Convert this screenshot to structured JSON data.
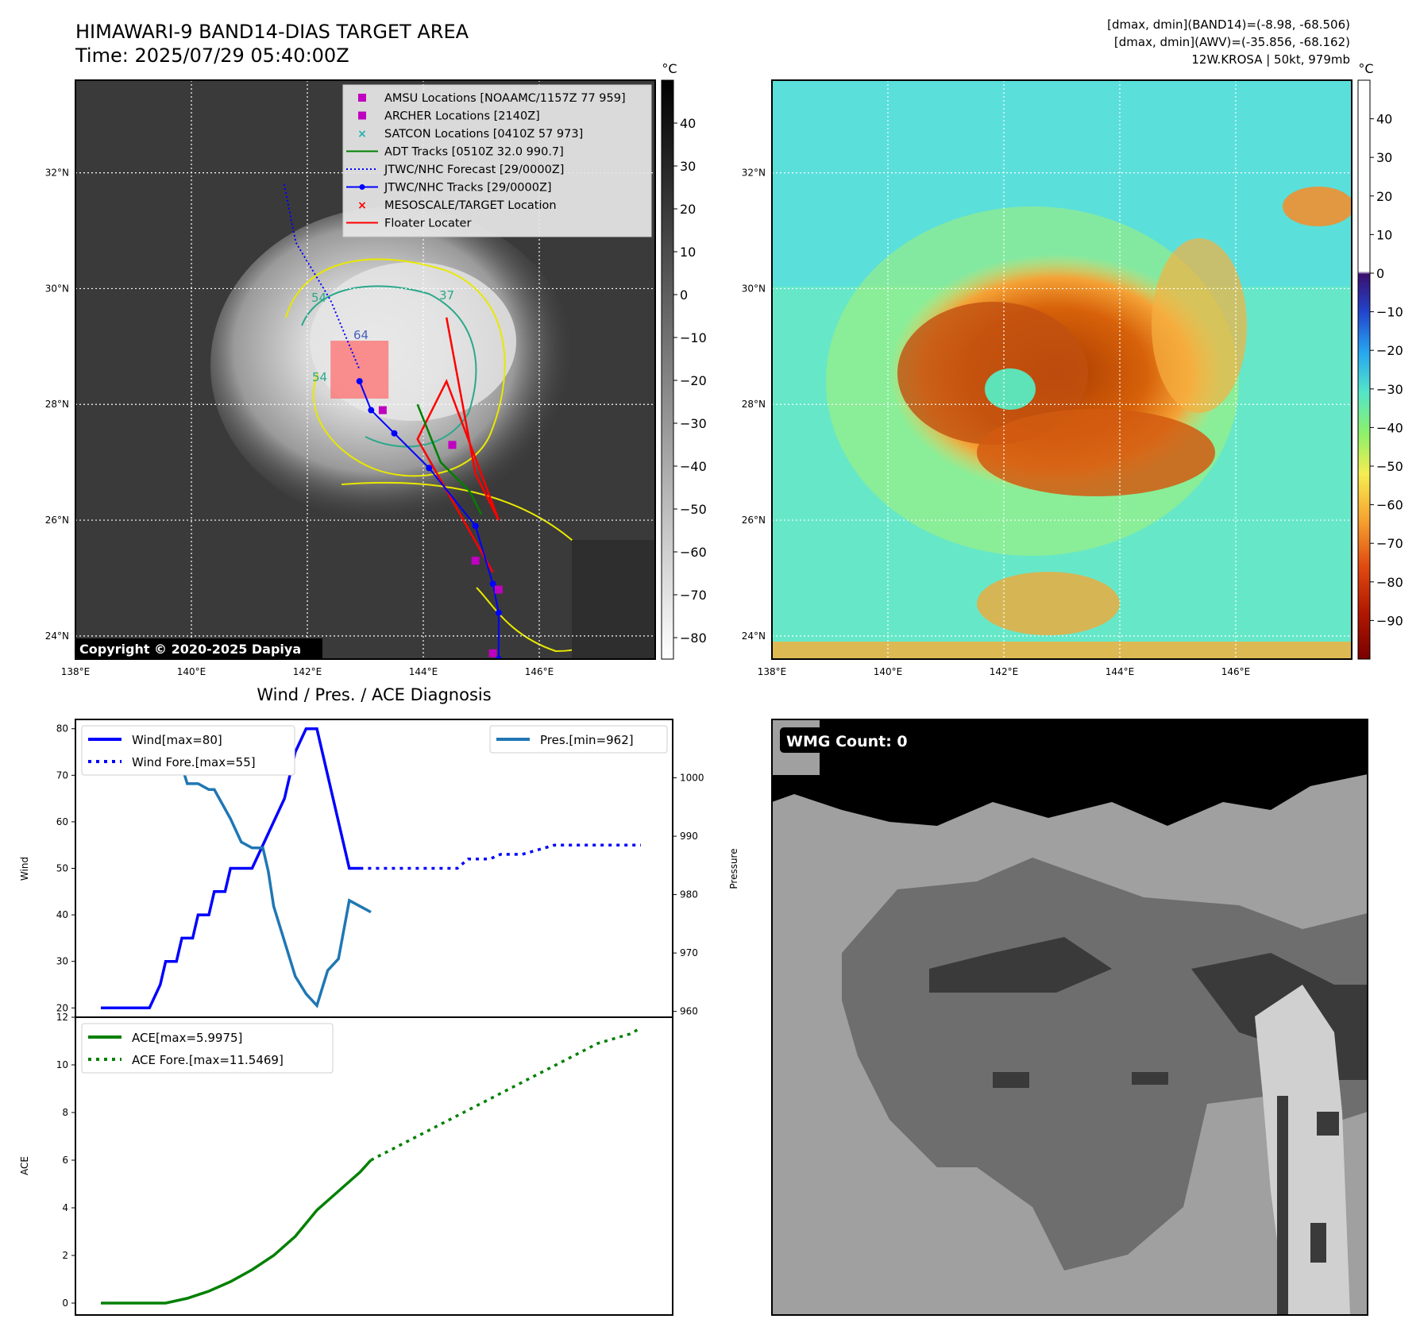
{
  "header": {
    "title_line1": "HIMAWARI-9 BAND14-DIAS TARGET AREA",
    "title_line2": "Time: 2025/07/29 05:40:00Z",
    "info_line1": "[dmax, dmin](BAND14)=(-8.98, -68.506)",
    "info_line2": "[dmax, dmin](AWV)=(-35.856, -68.162)",
    "info_line3": "12W.KROSA | 50kt, 979mb"
  },
  "map": {
    "lat_ticks": [
      "32°N",
      "30°N",
      "28°N",
      "26°N",
      "24°N"
    ],
    "lon_ticks": [
      "138°E",
      "140°E",
      "142°E",
      "144°E",
      "146°E"
    ],
    "lon_range": [
      138,
      148
    ],
    "lat_range": [
      23.6,
      33.6
    ],
    "copyright": "Copyright © 2020-2025 Dapiya",
    "contour_labels": [
      "54",
      "37",
      "64",
      "54"
    ],
    "legend": [
      {
        "label": "AMSU Locations [NOAAMC/1157Z 77 959]",
        "marker": "square",
        "color": "#c000c0"
      },
      {
        "label": "ARCHER Locations [2140Z]",
        "marker": "square",
        "color": "#c000c0"
      },
      {
        "label": "SATCON Locations [0410Z 57 973]",
        "marker": "x",
        "color": "#20b0b0"
      },
      {
        "label": "ADT Tracks [0510Z 32.0 990.7]",
        "marker": "line",
        "color": "#008000"
      },
      {
        "label": "JTWC/NHC Forecast [29/0000Z]",
        "marker": "dotted",
        "color": "#0000ff"
      },
      {
        "label": "JTWC/NHC Tracks [29/0000Z]",
        "marker": "line-dot",
        "color": "#0000ff"
      },
      {
        "label": "MESOSCALE/TARGET Location",
        "marker": "x",
        "color": "#ff0000"
      },
      {
        "label": "Floater Locater",
        "marker": "line",
        "color": "#ff0000"
      }
    ],
    "track_forecast": [
      [
        141.6,
        31.8
      ],
      [
        141.8,
        30.8
      ],
      [
        142.4,
        29.8
      ],
      [
        142.9,
        28.6
      ]
    ],
    "track_jtwc": [
      [
        145.3,
        23.6
      ],
      [
        145.3,
        24.4
      ],
      [
        145.2,
        24.9
      ],
      [
        144.9,
        25.9
      ],
      [
        144.1,
        26.9
      ],
      [
        143.5,
        27.5
      ],
      [
        143.1,
        27.9
      ],
      [
        142.9,
        28.4
      ]
    ],
    "amsu_points": [
      [
        143.3,
        27.9
      ],
      [
        144.9,
        25.3
      ],
      [
        145.3,
        24.8
      ],
      [
        145.2,
        23.7
      ],
      [
        144.5,
        27.3
      ]
    ],
    "adt_track": [
      [
        143.9,
        28.0
      ],
      [
        144.3,
        27.0
      ],
      [
        144.8,
        26.5
      ],
      [
        145.0,
        26.1
      ]
    ],
    "floater": [
      [
        144.4,
        29.5
      ],
      [
        144.9,
        26.8
      ],
      [
        145.3,
        26.0
      ],
      [
        144.4,
        28.4
      ],
      [
        143.9,
        27.4
      ],
      [
        145.2,
        25.1
      ]
    ],
    "mesoscale_box": [
      142.4,
      28.1,
      143.4,
      29.1
    ]
  },
  "colorbar_left": {
    "unit": "°C",
    "ticks": [
      "40",
      "30",
      "20",
      "10",
      "0",
      "−10",
      "−20",
      "−30",
      "−40",
      "−50",
      "−60",
      "−70",
      "−80"
    ],
    "range": [
      -85,
      50
    ]
  },
  "colorbar_right": {
    "unit": "°C",
    "ticks": [
      "40",
      "30",
      "20",
      "10",
      "0",
      "−10",
      "−20",
      "−30",
      "−40",
      "−50",
      "−60",
      "−70",
      "−80",
      "−90"
    ],
    "range": [
      -100,
      50
    ]
  },
  "wmg": {
    "label": "WMG Count: 0",
    "colors": {
      "black": "#000000",
      "light": "#a0a0a0",
      "mid": "#6e6e6e",
      "dark": "#3a3a3a",
      "pale": "#d0d0d0"
    }
  },
  "chart_data": [
    {
      "type": "line",
      "title": "Wind / Pres. / ACE Diagnosis",
      "ylabel": "Wind",
      "ylim": [
        18,
        82
      ],
      "yticks": [
        "80",
        "70",
        "60",
        "50",
        "40",
        "30",
        "20"
      ],
      "series": [
        {
          "name": "Wind[max=80]",
          "color": "#0000ff",
          "style": "solid",
          "x": [
            0,
            6,
            9,
            11,
            12,
            14,
            15,
            17,
            18,
            20,
            21,
            23,
            24,
            26,
            28,
            30,
            32,
            34,
            36,
            38,
            40,
            42,
            44,
            46,
            48
          ],
          "y": [
            20,
            20,
            20,
            25,
            30,
            30,
            35,
            35,
            40,
            40,
            45,
            45,
            50,
            50,
            50,
            55,
            60,
            65,
            75,
            80,
            80,
            70,
            60,
            50,
            50
          ]
        },
        {
          "name": "Wind Fore.[max=55]",
          "color": "#0000ff",
          "style": "dotted",
          "x": [
            48,
            52,
            56,
            60,
            66,
            68,
            72,
            74,
            78,
            84,
            90,
            96,
            100
          ],
          "y": [
            50,
            50,
            50,
            50,
            50,
            52,
            52,
            53,
            53,
            55,
            55,
            55,
            55
          ]
        }
      ]
    },
    {
      "type": "line",
      "ylabel": "Pressure",
      "ylim": [
        959,
        1010
      ],
      "yticks": [
        "1000",
        "990",
        "980",
        "970",
        "960"
      ],
      "legend": "Pres.[min=962]",
      "series": [
        {
          "name": "Pres.[min=962]",
          "color": "#1f77b4",
          "style": "solid",
          "x": [
            0,
            6,
            7,
            9,
            11,
            12,
            15,
            16,
            18,
            20,
            21,
            24,
            26,
            28,
            30,
            31,
            32,
            34,
            36,
            38,
            40,
            42,
            44,
            46,
            48,
            50
          ],
          "y": [
            1006,
            1006,
            1004,
            1003,
            1003,
            1002,
            1002,
            999,
            999,
            998,
            998,
            993,
            989,
            988,
            988,
            984,
            978,
            972,
            966,
            963,
            961,
            967,
            969,
            979,
            978,
            977
          ]
        }
      ]
    },
    {
      "type": "line",
      "ylabel": "ACE",
      "ylim": [
        -0.5,
        12
      ],
      "yticks": [
        "12",
        "10",
        "8",
        "6",
        "4",
        "2",
        "0"
      ],
      "series": [
        {
          "name": "ACE[max=5.9975]",
          "color": "#008000",
          "style": "solid",
          "x": [
            0,
            12,
            16,
            20,
            24,
            28,
            32,
            36,
            40,
            44,
            48,
            50
          ],
          "y": [
            0,
            0,
            0.2,
            0.5,
            0.9,
            1.4,
            2.0,
            2.8,
            3.9,
            4.7,
            5.5,
            6.0
          ]
        },
        {
          "name": "ACE Fore.[max=11.5469]",
          "color": "#008000",
          "style": "dotted",
          "x": [
            50,
            56,
            62,
            68,
            74,
            80,
            86,
            92,
            98,
            100
          ],
          "y": [
            6.0,
            6.7,
            7.4,
            8.1,
            8.8,
            9.5,
            10.2,
            10.9,
            11.3,
            11.55
          ]
        }
      ]
    }
  ]
}
